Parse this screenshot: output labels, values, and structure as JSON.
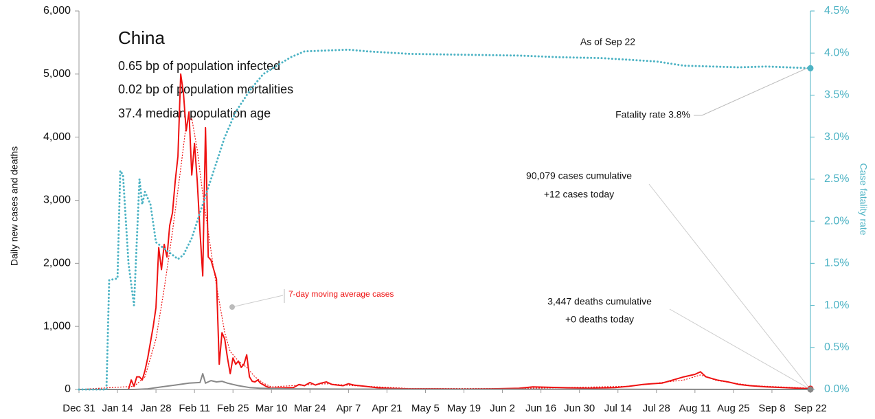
{
  "chart_data": {
    "type": "line",
    "title": "China",
    "subtitle_lines": [
      "0.65 bp of population infected",
      "0.02 bp of population mortalities",
      "37.4 median population age"
    ],
    "ylabel": "Daily new cases and deaths",
    "y2label": "Case fatality rate",
    "annotations": {
      "as_of": "As of Sep 22",
      "fatality": "Fatality rate 3.8%",
      "cases_cum": "90,079 cases cumulative",
      "cases_today": "+12 cases today",
      "deaths_cum": "3,447 deaths cumulative",
      "deaths_today": "+0 deaths today"
    },
    "xlim": [
      0,
      266
    ],
    "xticks": [
      {
        "value": 0,
        "label": "Dec 31"
      },
      {
        "value": 14,
        "label": "Jan 14"
      },
      {
        "value": 28,
        "label": "Jan 28"
      },
      {
        "value": 42,
        "label": "Feb 11"
      },
      {
        "value": 56,
        "label": "Feb 25"
      },
      {
        "value": 70,
        "label": "Mar 10"
      },
      {
        "value": 84,
        "label": "Mar 24"
      },
      {
        "value": 98,
        "label": "Apr 7"
      },
      {
        "value": 112,
        "label": "Apr 21"
      },
      {
        "value": 126,
        "label": "May 5"
      },
      {
        "value": 140,
        "label": "May 19"
      },
      {
        "value": 154,
        "label": "Jun 2"
      },
      {
        "value": 168,
        "label": "Jun 16"
      },
      {
        "value": 182,
        "label": "Jun 30"
      },
      {
        "value": 196,
        "label": "Jul 14"
      },
      {
        "value": 210,
        "label": "Jul 28"
      },
      {
        "value": 224,
        "label": "Aug 11"
      },
      {
        "value": 238,
        "label": "Aug 25"
      },
      {
        "value": 252,
        "label": "Sep 8"
      },
      {
        "value": 266,
        "label": "Sep 22"
      }
    ],
    "ylim": [
      0,
      6000
    ],
    "yticks": [
      0,
      {
        "value": 1000,
        "label": "1,000"
      },
      {
        "value": 2000,
        "label": "2,000"
      },
      {
        "value": 3000,
        "label": "3,000"
      },
      {
        "value": 4000,
        "label": "4,000"
      },
      {
        "value": 5000,
        "label": "5,000"
      },
      {
        "value": 6000,
        "label": "6,000"
      }
    ],
    "y2lim": [
      0,
      4.5
    ],
    "y2ticks": [
      {
        "value": 0,
        "label": "0.0%"
      },
      {
        "value": 0.5,
        "label": "0.5%"
      },
      {
        "value": 1,
        "label": "1.0%"
      },
      {
        "value": 1.5,
        "label": "1.5%"
      },
      {
        "value": 2,
        "label": "2.0%"
      },
      {
        "value": 2.5,
        "label": "2.5%"
      },
      {
        "value": 3,
        "label": "3.0%"
      },
      {
        "value": 3.5,
        "label": "3.5%"
      },
      {
        "value": 4,
        "label": "4.0%"
      },
      {
        "value": 4.5,
        "label": "4.5%"
      }
    ],
    "series": [
      {
        "color": "#ee1111",
        "style": "solid",
        "x": [
          0,
          18,
          19,
          20,
          21,
          22,
          23,
          24,
          25,
          26,
          27,
          28,
          29,
          30,
          31,
          32,
          33,
          34,
          35,
          36,
          37,
          38,
          39,
          40,
          41,
          42,
          43,
          44,
          45,
          46,
          47,
          48,
          49,
          50,
          51,
          52,
          53,
          54,
          55,
          56,
          57,
          58,
          59,
          60,
          61,
          62,
          63,
          64,
          65,
          66,
          68,
          70,
          78,
          80,
          82,
          84,
          86,
          88,
          90,
          92,
          96,
          98,
          100,
          104,
          108,
          112,
          120,
          130,
          140,
          150,
          160,
          165,
          175,
          185,
          195,
          200,
          205,
          208,
          212,
          216,
          220,
          224,
          226,
          228,
          232,
          236,
          240,
          244,
          250,
          256,
          262,
          266
        ],
        "values": [
          0,
          0,
          150,
          50,
          200,
          200,
          150,
          300,
          500,
          750,
          1000,
          1300,
          2250,
          1900,
          2300,
          2100,
          2600,
          2800,
          3300,
          3700,
          5000,
          4700,
          4100,
          4400,
          3400,
          3900,
          3300,
          2500,
          1800,
          4150,
          2100,
          2050,
          1900,
          1750,
          400,
          900,
          800,
          500,
          250,
          500,
          400,
          450,
          350,
          400,
          550,
          200,
          130,
          120,
          150,
          100,
          50,
          20,
          30,
          80,
          60,
          110,
          70,
          100,
          120,
          80,
          60,
          90,
          70,
          50,
          30,
          20,
          10,
          10,
          5,
          10,
          20,
          40,
          30,
          20,
          30,
          50,
          80,
          90,
          100,
          150,
          200,
          240,
          280,
          200,
          150,
          120,
          80,
          60,
          40,
          30,
          20,
          12
        ]
      },
      {
        "name": "7-day moving average cases",
        "color": "#ee1111",
        "style": "dotted",
        "x": [
          0,
          20,
          24,
          28,
          31,
          34,
          37,
          39,
          41,
          43,
          45,
          47,
          49,
          51,
          53,
          55,
          58,
          61,
          64,
          67,
          70,
          85,
          90,
          100,
          120,
          160,
          200,
          220,
          226,
          232,
          245,
          266
        ],
        "values": [
          0,
          50,
          200,
          800,
          1600,
          2500,
          3500,
          4200,
          4300,
          3800,
          3100,
          2500,
          1900,
          1400,
          900,
          600,
          450,
          350,
          200,
          100,
          40,
          80,
          90,
          60,
          15,
          15,
          50,
          150,
          230,
          140,
          60,
          20
        ]
      },
      {
        "color": "#888888",
        "style": "solid",
        "x": [
          0,
          20,
          25,
          30,
          35,
          40,
          44,
          45,
          46,
          48,
          50,
          52,
          54,
          56,
          58,
          62,
          66,
          75,
          100,
          266
        ],
        "values": [
          0,
          0,
          10,
          40,
          70,
          100,
          110,
          250,
          100,
          140,
          120,
          130,
          100,
          80,
          60,
          30,
          20,
          10,
          5,
          0
        ]
      },
      {
        "color": "#4db3c4",
        "style": "dotted",
        "axis": "y2",
        "x": [
          0,
          10,
          11,
          14,
          15,
          16,
          18,
          20,
          22,
          23,
          24,
          26,
          28,
          30,
          34,
          36,
          38,
          41,
          44,
          47,
          50,
          53,
          57,
          62,
          67,
          72,
          77,
          82,
          90,
          98,
          105,
          120,
          140,
          160,
          175,
          190,
          200,
          210,
          220,
          230,
          240,
          250,
          266
        ],
        "values": [
          0,
          0,
          1.3,
          1.32,
          2.6,
          2.55,
          1.5,
          1.0,
          2.5,
          2.2,
          2.35,
          2.2,
          1.75,
          1.7,
          1.6,
          1.55,
          1.6,
          1.8,
          2.1,
          2.4,
          2.7,
          3.0,
          3.3,
          3.55,
          3.75,
          3.85,
          3.95,
          4.02,
          4.03,
          4.04,
          4.02,
          3.99,
          3.98,
          3.97,
          3.95,
          3.94,
          3.92,
          3.9,
          3.85,
          3.84,
          3.83,
          3.84,
          3.82
        ]
      }
    ]
  }
}
